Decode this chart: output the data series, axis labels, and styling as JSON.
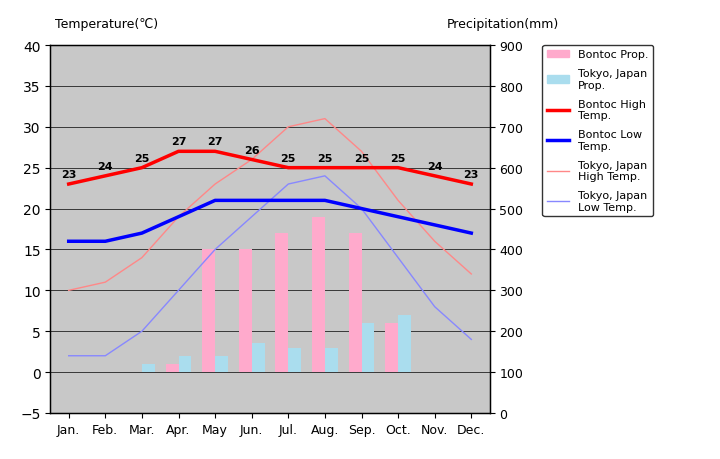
{
  "months": [
    "Jan.",
    "Feb.",
    "Mar.",
    "Apr.",
    "May",
    "Jun.",
    "Jul.",
    "Aug.",
    "Sep.",
    "Oct.",
    "Nov.",
    "Dec."
  ],
  "bontoc_high": [
    23,
    24,
    25,
    27,
    27,
    26,
    25,
    25,
    25,
    25,
    24,
    23
  ],
  "bontoc_low": [
    16,
    16,
    17,
    19,
    21,
    21,
    21,
    21,
    20,
    19,
    18,
    17
  ],
  "tokyo_high": [
    10,
    11,
    14,
    19,
    23,
    26,
    30,
    31,
    27,
    21,
    16,
    12
  ],
  "tokyo_low": [
    2,
    2,
    5,
    10,
    15,
    19,
    23,
    24,
    20,
    14,
    8,
    4
  ],
  "bontoc_bar_temp": [
    -4,
    -4,
    -2,
    1,
    15,
    15,
    17,
    19,
    17,
    6,
    -1,
    -4
  ],
  "tokyo_bar_temp": [
    -3,
    -3,
    1,
    2,
    2,
    3.5,
    3,
    3,
    6,
    7,
    -3,
    -3
  ],
  "title_left": "Temperature(℃)",
  "title_right": "Precipitation(mm)",
  "bg_color": "#c8c8c8",
  "bontoc_high_color": "#ff0000",
  "bontoc_low_color": "#0000ff",
  "tokyo_high_color": "#ff8888",
  "tokyo_low_color": "#8888ff",
  "bontoc_bar_color": "#ffaacc",
  "tokyo_bar_color": "#aaddee",
  "ylim_temp": [
    -5,
    40
  ],
  "ylim_precip": [
    0,
    900
  ],
  "yticks_temp": [
    -5,
    0,
    5,
    10,
    15,
    20,
    25,
    30,
    35,
    40
  ],
  "yticks_precip": [
    0,
    100,
    200,
    300,
    400,
    500,
    600,
    700,
    800,
    900
  ],
  "legend_labels": [
    "Bontoc Prop.",
    "Tokyo, Japan\nProp.",
    "Bontoc High\nTemp.",
    "Bontoc Low\nTemp.",
    "Tokyo, Japan\nHigh Temp.",
    "Tokyo, Japan\nLow Temp."
  ]
}
